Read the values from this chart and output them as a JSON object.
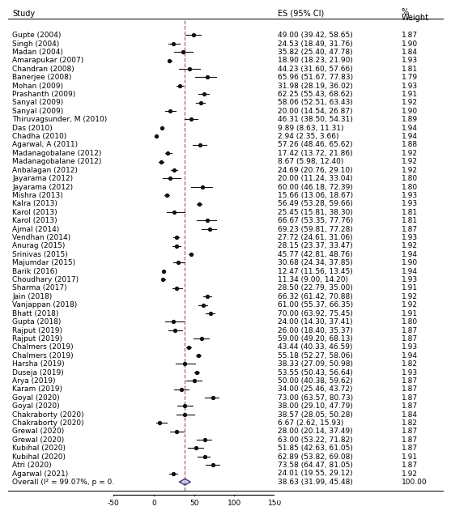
{
  "studies": [
    {
      "name": "Gupte (2004)",
      "es": 49.0,
      "ci_lo": 39.42,
      "ci_hi": 58.65,
      "weight": "1.87"
    },
    {
      "name": "Singh (2004)",
      "es": 24.53,
      "ci_lo": 18.49,
      "ci_hi": 31.76,
      "weight": "1.90"
    },
    {
      "name": "Madan (2004)",
      "es": 35.82,
      "ci_lo": 25.4,
      "ci_hi": 47.78,
      "weight": "1.84"
    },
    {
      "name": "Amarapukar (2007)",
      "es": 18.9,
      "ci_lo": 18.23,
      "ci_hi": 21.9,
      "weight": "1.93"
    },
    {
      "name": "Chandran (2008)",
      "es": 44.23,
      "ci_lo": 31.6,
      "ci_hi": 57.66,
      "weight": "1.81"
    },
    {
      "name": "Banerjee (2008)",
      "es": 65.96,
      "ci_lo": 51.67,
      "ci_hi": 77.83,
      "weight": "1.79"
    },
    {
      "name": "Mohan (2009)",
      "es": 31.98,
      "ci_lo": 28.19,
      "ci_hi": 36.02,
      "weight": "1.93"
    },
    {
      "name": "Prashanth (2009)",
      "es": 62.25,
      "ci_lo": 55.43,
      "ci_hi": 68.62,
      "weight": "1.91"
    },
    {
      "name": "Sanyal (2009)",
      "es": 58.06,
      "ci_lo": 52.51,
      "ci_hi": 63.43,
      "weight": "1.92"
    },
    {
      "name": "Sanyal (2009)",
      "es": 20.0,
      "ci_lo": 14.54,
      "ci_hi": 26.87,
      "weight": "1.90"
    },
    {
      "name": "Thiruvagsunder, M (2010)",
      "es": 46.31,
      "ci_lo": 38.5,
      "ci_hi": 54.31,
      "weight": "1.89"
    },
    {
      "name": "Das (2010)",
      "es": 9.89,
      "ci_lo": 8.63,
      "ci_hi": 11.31,
      "weight": "1.94"
    },
    {
      "name": "Chadha (2010)",
      "es": 2.94,
      "ci_lo": 2.35,
      "ci_hi": 3.66,
      "weight": "1.94"
    },
    {
      "name": "Agarwal, A (2011)",
      "es": 57.26,
      "ci_lo": 48.46,
      "ci_hi": 65.62,
      "weight": "1.88"
    },
    {
      "name": "Madanagobalane (2012)",
      "es": 17.42,
      "ci_lo": 13.72,
      "ci_hi": 21.86,
      "weight": "1.92"
    },
    {
      "name": "Madanagobalane (2012)",
      "es": 8.67,
      "ci_lo": 5.98,
      "ci_hi": 12.4,
      "weight": "1.92"
    },
    {
      "name": "Anbalagan (2012)",
      "es": 24.69,
      "ci_lo": 20.76,
      "ci_hi": 29.1,
      "weight": "1.92"
    },
    {
      "name": "Jayarama (2012)",
      "es": 20.0,
      "ci_lo": 11.24,
      "ci_hi": 33.04,
      "weight": "1.80"
    },
    {
      "name": "Jayarama (2012)",
      "es": 60.0,
      "ci_lo": 46.18,
      "ci_hi": 72.39,
      "weight": "1.80"
    },
    {
      "name": "Mishra (2013)",
      "es": 15.66,
      "ci_lo": 13.06,
      "ci_hi": 18.67,
      "weight": "1.93"
    },
    {
      "name": "Kalra (2013)",
      "es": 56.49,
      "ci_lo": 53.28,
      "ci_hi": 59.66,
      "weight": "1.93"
    },
    {
      "name": "Karol (2013)",
      "es": 25.45,
      "ci_lo": 15.81,
      "ci_hi": 38.3,
      "weight": "1.81"
    },
    {
      "name": "Karol (2013)",
      "es": 66.67,
      "ci_lo": 53.35,
      "ci_hi": 77.76,
      "weight": "1.81"
    },
    {
      "name": "Ajmal (2014)",
      "es": 69.23,
      "ci_lo": 59.81,
      "ci_hi": 77.28,
      "weight": "1.87"
    },
    {
      "name": "Vendhan (2014)",
      "es": 27.72,
      "ci_lo": 24.61,
      "ci_hi": 31.06,
      "weight": "1.93"
    },
    {
      "name": "Anurag (2015)",
      "es": 28.15,
      "ci_lo": 23.37,
      "ci_hi": 33.47,
      "weight": "1.92"
    },
    {
      "name": "Srinivas (2015)",
      "es": 45.77,
      "ci_lo": 42.81,
      "ci_hi": 48.76,
      "weight": "1.94"
    },
    {
      "name": "Majumdar (2015)",
      "es": 30.68,
      "ci_lo": 24.34,
      "ci_hi": 37.85,
      "weight": "1.90"
    },
    {
      "name": "Barik (2016)",
      "es": 12.47,
      "ci_lo": 11.56,
      "ci_hi": 13.45,
      "weight": "1.94"
    },
    {
      "name": "Choudhary (2017)",
      "es": 11.34,
      "ci_lo": 9.0,
      "ci_hi": 14.2,
      "weight": "1.93"
    },
    {
      "name": "Sharma (2017)",
      "es": 28.5,
      "ci_lo": 22.79,
      "ci_hi": 35.0,
      "weight": "1.91"
    },
    {
      "name": "Jain (2018)",
      "es": 66.32,
      "ci_lo": 61.42,
      "ci_hi": 70.88,
      "weight": "1.92"
    },
    {
      "name": "Vanjappan (2018)",
      "es": 61.0,
      "ci_lo": 55.37,
      "ci_hi": 66.35,
      "weight": "1.92"
    },
    {
      "name": "Bhatt (2018)",
      "es": 70.0,
      "ci_lo": 63.92,
      "ci_hi": 75.45,
      "weight": "1.91"
    },
    {
      "name": "Gupta (2018)",
      "es": 24.0,
      "ci_lo": 14.3,
      "ci_hi": 37.41,
      "weight": "1.80"
    },
    {
      "name": "Rajput (2019)",
      "es": 26.0,
      "ci_lo": 18.4,
      "ci_hi": 35.37,
      "weight": "1.87"
    },
    {
      "name": "Rajput (2019)",
      "es": 59.0,
      "ci_lo": 49.2,
      "ci_hi": 68.13,
      "weight": "1.87"
    },
    {
      "name": "Chalmers (2019)",
      "es": 43.44,
      "ci_lo": 40.33,
      "ci_hi": 46.59,
      "weight": "1.93"
    },
    {
      "name": "Chalmers (2019)",
      "es": 55.18,
      "ci_lo": 52.27,
      "ci_hi": 58.06,
      "weight": "1.94"
    },
    {
      "name": "Harsha (2019)",
      "es": 38.33,
      "ci_lo": 27.09,
      "ci_hi": 50.98,
      "weight": "1.82"
    },
    {
      "name": "Duseja (2019)",
      "es": 53.55,
      "ci_lo": 50.43,
      "ci_hi": 56.64,
      "weight": "1.93"
    },
    {
      "name": "Arya (2019)",
      "es": 50.0,
      "ci_lo": 40.38,
      "ci_hi": 59.62,
      "weight": "1.87"
    },
    {
      "name": "Karam (2019)",
      "es": 34.0,
      "ci_lo": 25.46,
      "ci_hi": 43.72,
      "weight": "1.87"
    },
    {
      "name": "Goyal (2020)",
      "es": 73.0,
      "ci_lo": 63.57,
      "ci_hi": 80.73,
      "weight": "1.87"
    },
    {
      "name": "Goyal (2020)",
      "es": 38.0,
      "ci_lo": 29.1,
      "ci_hi": 47.79,
      "weight": "1.87"
    },
    {
      "name": "Chakraborty (2020)",
      "es": 38.57,
      "ci_lo": 28.05,
      "ci_hi": 50.28,
      "weight": "1.84"
    },
    {
      "name": "Chakraborty (2020)",
      "es": 6.67,
      "ci_lo": 2.62,
      "ci_hi": 15.93,
      "weight": "1.82"
    },
    {
      "name": "Grewal (2020)",
      "es": 28.0,
      "ci_lo": 20.14,
      "ci_hi": 37.49,
      "weight": "1.87"
    },
    {
      "name": "Grewal (2020)",
      "es": 63.0,
      "ci_lo": 53.22,
      "ci_hi": 71.82,
      "weight": "1.87"
    },
    {
      "name": "Kubihal (2020)",
      "es": 51.85,
      "ci_lo": 42.63,
      "ci_hi": 61.05,
      "weight": "1.87"
    },
    {
      "name": "Kubihal (2020)",
      "es": 62.89,
      "ci_lo": 53.82,
      "ci_hi": 69.08,
      "weight": "1.91"
    },
    {
      "name": "Atri (2020)",
      "es": 73.58,
      "ci_lo": 64.47,
      "ci_hi": 81.05,
      "weight": "1.87"
    },
    {
      "name": "Agarwal (2021)",
      "es": 24.01,
      "ci_lo": 19.55,
      "ci_hi": 29.12,
      "weight": "1.92"
    }
  ],
  "overall": {
    "es": 38.63,
    "ci_lo": 31.99,
    "ci_hi": 45.48,
    "weight": "100.00",
    "label": "Overall (I² = 99.07%, p = 0.00)"
  },
  "dashed_line_x": 38.63,
  "data_xlim": [
    -50,
    150
  ],
  "xticks": [
    -50,
    0,
    50,
    100,
    150
  ],
  "header_study": "Study",
  "header_es": "ES (95% CI)",
  "header_weight": "%\nWeight",
  "text_fontsize": 6.5,
  "header_fontsize": 7,
  "marker_color": "#111111",
  "ci_line_color": "#111111",
  "dashed_line_color": "#b06060",
  "overall_fill_color": "#5555aa",
  "overall_edge_color": "#333388"
}
